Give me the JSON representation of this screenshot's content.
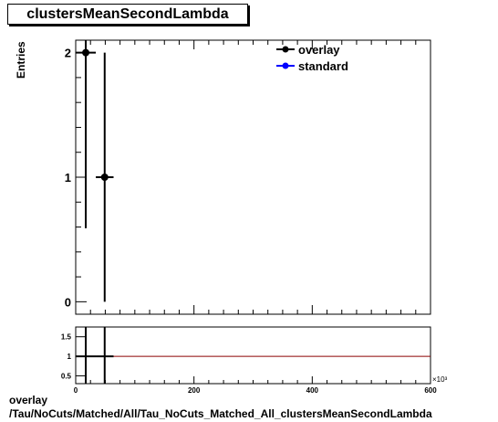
{
  "title": "clustersMeanSecondLambda",
  "footer": {
    "line1": "overlay",
    "line2": "/Tau/NoCuts/Matched/All/Tau_NoCuts_Matched_All_clustersMeanSecondLambda"
  },
  "chart_data": [
    {
      "type": "scatter",
      "ylabel": "Entries",
      "xlim": [
        0,
        600000
      ],
      "ylim": [
        -0.1,
        2.1
      ],
      "x_ticks": [
        0,
        200000,
        400000,
        600000
      ],
      "x_tick_labels": [
        "0",
        "200",
        "400",
        "600"
      ],
      "x_multiplier": "×10³",
      "y_ticks": [
        0,
        1,
        2
      ],
      "y_tick_labels": [
        "0",
        "1",
        "2"
      ],
      "legend": {
        "placement": "top-right"
      },
      "series": [
        {
          "name": "overlay",
          "color": "#000000",
          "points": [
            {
              "x": 17000,
              "y": 2,
              "xerr": 17000,
              "ylo": 0.59,
              "yhi": 2.1
            },
            {
              "x": 49000,
              "y": 1,
              "xerr": 15000,
              "ylo": 0,
              "yhi": 2.0
            }
          ]
        },
        {
          "name": "standard",
          "color": "#0000ff",
          "points": []
        }
      ]
    },
    {
      "type": "line",
      "xlim": [
        0,
        600000
      ],
      "ylim": [
        0.3,
        1.75
      ],
      "y_ticks": [
        0.5,
        1.0,
        1.5
      ],
      "y_tick_labels": [
        "0.5",
        "1",
        "1.5"
      ],
      "ratio_line": {
        "y": 1.0,
        "color": "#8b0000"
      },
      "points": [
        {
          "x": 17000,
          "y": 1,
          "xerr": 17000,
          "ylo": 0.3,
          "yhi": 1.75
        },
        {
          "x": 49000,
          "y": 1,
          "xerr": 15000,
          "ylo": 0.3,
          "yhi": 1.75
        }
      ]
    }
  ]
}
